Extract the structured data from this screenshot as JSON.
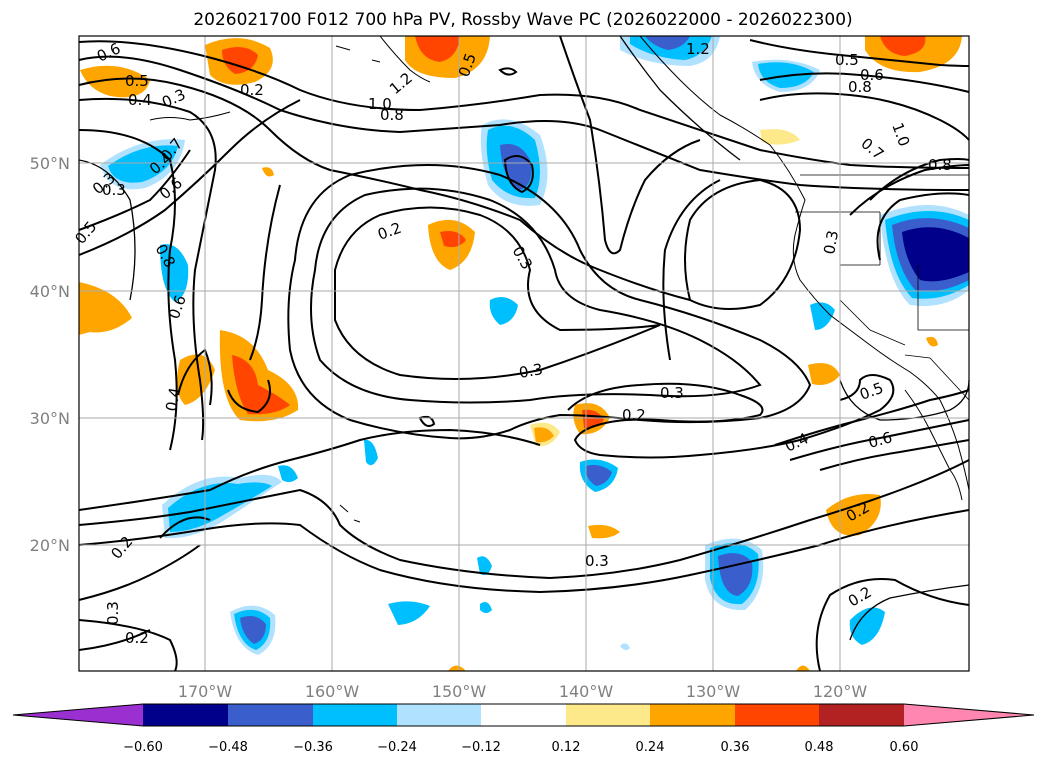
{
  "title": "2026021700 F012 700 hPa PV, Rossby Wave PC (2026022000 - 2026022300)",
  "map": {
    "lat_labels": [
      "50°N",
      "40°N",
      "30°N",
      "20°N"
    ],
    "lon_labels": [
      "170°W",
      "160°W",
      "150°W",
      "140°W",
      "130°W",
      "120°W"
    ],
    "grid": true,
    "shading_field": "Rossby Wave PC",
    "contour_field": "700 hPa PV",
    "contour_labels": [
      "0.6",
      "0.5",
      "0.4",
      "0.3",
      "0.2",
      "1.0",
      "0.8",
      "1.2",
      "0.7",
      "0.3",
      "0.4",
      "0.6",
      "0.3",
      "0.5",
      "0.8",
      "0.6",
      "0.4",
      "0.2",
      "0.3",
      "0.3",
      "0.3",
      "0.2",
      "0.4",
      "0.5",
      "0.6",
      "0.2",
      "0.2",
      "0.3",
      "0.2",
      "0.3",
      "0.2",
      "0.5",
      "0.6",
      "0.8",
      "1.2",
      "0.5",
      "0.7",
      "1.0",
      "0.8",
      "0.3"
    ]
  },
  "colorbar": {
    "ticks": [
      "−0.60",
      "−0.48",
      "−0.36",
      "−0.24",
      "−0.12",
      "0.12",
      "0.24",
      "0.36",
      "0.48",
      "0.60"
    ],
    "colors": [
      "#9b30d0",
      "#00008b",
      "#3a5fcd",
      "#00bfff",
      "#b0e2ff",
      "#ffffff",
      "#fde98a",
      "#ffa500",
      "#ff4500",
      "#b22222",
      "#ff86b0"
    ],
    "extend": "both"
  }
}
